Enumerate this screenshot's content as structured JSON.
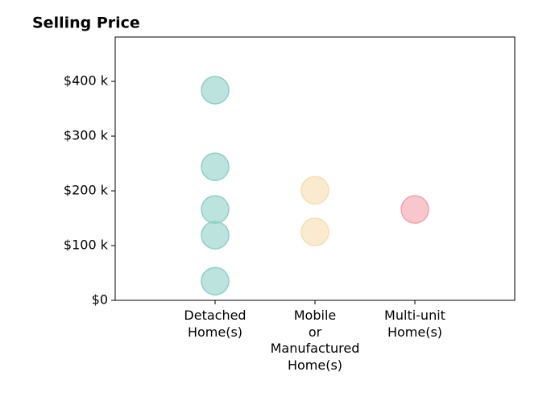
{
  "chart_data": {
    "type": "strip",
    "title": "Selling Price",
    "categories": [
      "Detached\nHome(s)",
      "Mobile\nor\nManufactured\nHome(s)",
      "Multi-unit\nHome(s)"
    ],
    "values": [
      [
        384000,
        244000,
        166000,
        119000,
        35000
      ],
      [
        201000,
        125000
      ],
      [
        166000
      ]
    ],
    "colors": [
      "#8fd0c6",
      "#f7ddb0",
      "#f3a1ab"
    ],
    "ylim": [
      0,
      481000
    ],
    "yticks": [
      {
        "value": 0,
        "label": "$0"
      },
      {
        "value": 100000,
        "label": "$100 k"
      },
      {
        "value": 200000,
        "label": "$200 k"
      },
      {
        "value": 300000,
        "label": "$300 k"
      },
      {
        "value": 400000,
        "label": "$400 k"
      }
    ]
  }
}
